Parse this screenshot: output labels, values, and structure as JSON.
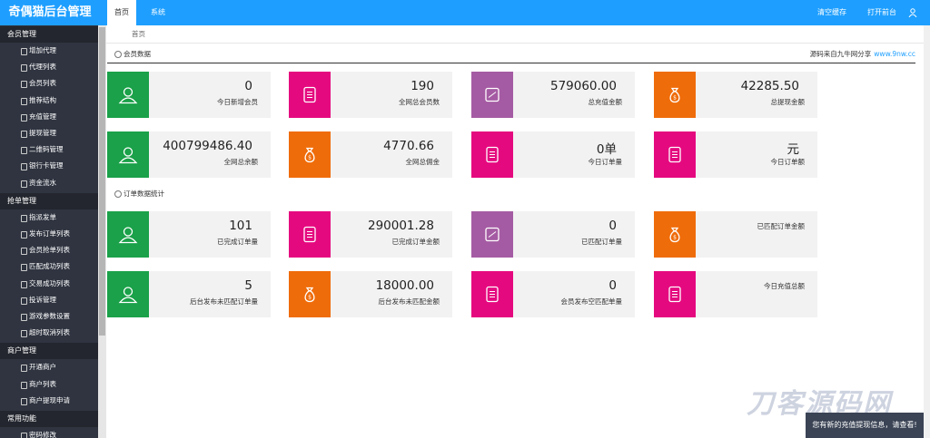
{
  "header": {
    "logo": "奇偶猫后台管理",
    "tabs": [
      "首页",
      "系统"
    ],
    "actions": [
      "清空缓存",
      "打开前台"
    ]
  },
  "sidebar": [
    {
      "title": "会员管理",
      "items": [
        "增加代理",
        "代理列表",
        "会员列表",
        "推荐结构",
        "充值管理",
        "提现管理",
        "二维码管理",
        "银行卡管理",
        "资金流水"
      ]
    },
    {
      "title": "抢单管理",
      "items": [
        "指派发单",
        "发布订单列表",
        "会员抢单列表",
        "匹配成功列表",
        "交易成功列表",
        "投诉管理",
        "游戏参数设置",
        "超时取消列表"
      ]
    },
    {
      "title": "商户管理",
      "items": [
        "开通商户",
        "商户列表",
        "商户提现申请"
      ]
    },
    {
      "title": "常用功能",
      "items": [
        "密码修改"
      ]
    }
  ],
  "breadcrumb": "首页",
  "sections": [
    {
      "title": "会员数据",
      "source": "源码来自九牛网分享",
      "link": "www.9nw.cc",
      "cards": [
        {
          "value": "0",
          "label": "今日新增会员",
          "color": "#1aa149",
          "icon": "user"
        },
        {
          "value": "190",
          "label": "全网总会员数",
          "color": "#e5097f",
          "icon": "doc"
        },
        {
          "value": "579060.00",
          "label": "总充值金额",
          "color": "#a55ba3",
          "icon": "card"
        },
        {
          "value": "42285.50",
          "label": "总提现金额",
          "color": "#ef6c0a",
          "icon": "bag"
        },
        {
          "value": "400799486.40",
          "label": "全网总余额",
          "color": "#1aa149",
          "icon": "user"
        },
        {
          "value": "4770.66",
          "label": "全网总佣金",
          "color": "#ef6c0a",
          "icon": "bag"
        },
        {
          "value": "0单",
          "label": "今日订单量",
          "color": "#e5097f",
          "icon": "doc"
        },
        {
          "value": "元",
          "label": "今日订单额",
          "color": "#e5097f",
          "icon": "doc"
        }
      ]
    },
    {
      "title": "订单数据统计",
      "cards": [
        {
          "value": "101",
          "label": "已完成订单量",
          "color": "#1aa149",
          "icon": "user"
        },
        {
          "value": "290001.28",
          "label": "已完成订单金额",
          "color": "#e5097f",
          "icon": "doc"
        },
        {
          "value": "0",
          "label": "已匹配订单量",
          "color": "#a55ba3",
          "icon": "card"
        },
        {
          "label": "已匹配订单金额",
          "color": "#ef6c0a",
          "icon": "bag"
        },
        {
          "value": "5",
          "label": "后台发布未匹配订单量",
          "color": "#1aa149",
          "icon": "user"
        },
        {
          "value": "18000.00",
          "label": "后台发布未匹配金额",
          "color": "#ef6c0a",
          "icon": "bag"
        },
        {
          "value": "0",
          "label": "会员发布空匹配单量",
          "color": "#e5097f",
          "icon": "doc"
        },
        {
          "label": "今日充值总额",
          "color": "#e5097f",
          "icon": "doc"
        }
      ]
    }
  ],
  "notification": "您有新的充值提现信息，请查看!",
  "watermark": "刀客源码网"
}
